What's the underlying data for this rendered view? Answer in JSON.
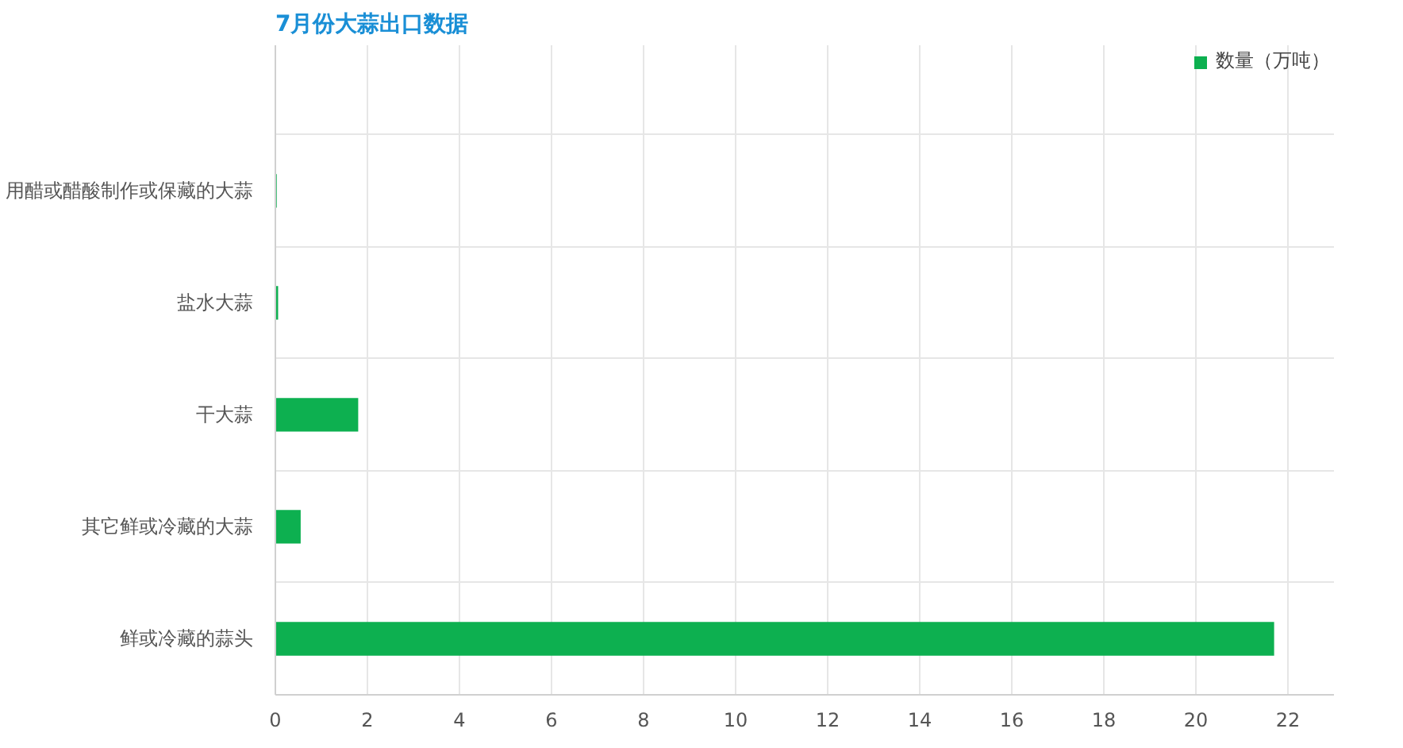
{
  "chart_data": {
    "type": "bar",
    "orientation": "horizontal",
    "title": "7月份大蒜出口数据",
    "categories": [
      "用醋或醋酸制作或保藏的大蒜",
      "盐水大蒜",
      "干大蒜",
      "其它鲜或冷藏的大蒜",
      "鲜或冷藏的蒜头"
    ],
    "series": [
      {
        "name": "数量（万吨）",
        "color": "#0db050",
        "values": [
          0.03,
          0.06,
          1.8,
          0.55,
          21.7
        ]
      }
    ],
    "xlim": [
      0,
      23
    ],
    "xticks": [
      0,
      2,
      4,
      6,
      8,
      10,
      12,
      14,
      16,
      18,
      20,
      22
    ],
    "grid": true,
    "legend": "top right"
  }
}
